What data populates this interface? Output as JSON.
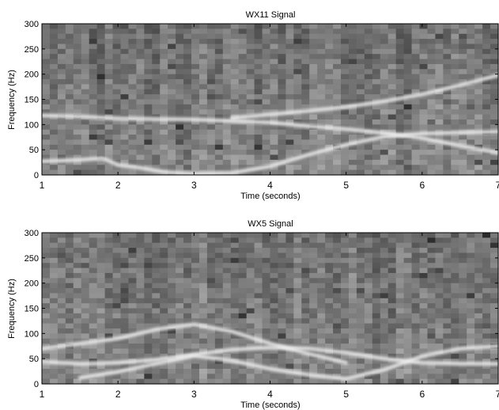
{
  "chart_data": [
    {
      "type": "heatmap",
      "title": "WX11 Signal",
      "xlabel": "Time (seconds)",
      "ylabel": "Frequency (Hz)",
      "xlim": [
        1,
        7
      ],
      "ylim": [
        0,
        300
      ],
      "xticks": [
        1,
        2,
        3,
        4,
        5,
        6,
        7
      ],
      "yticks": [
        0,
        50,
        100,
        150,
        200,
        250,
        300
      ],
      "colormap": "grayscale",
      "grid": false,
      "ridges": [
        {
          "t": [
            1.0,
            1.5,
            2.0,
            2.5,
            3.0,
            3.5,
            4.0,
            4.5,
            5.0,
            5.5,
            6.0,
            6.5,
            7.0
          ],
          "f": [
            118,
            116,
            112,
            111,
            110,
            107,
            104,
            97,
            91,
            83,
            73,
            58,
            44
          ]
        },
        {
          "t": [
            3.5,
            4.0,
            4.5,
            5.0,
            5.5,
            6.0,
            6.5,
            7.0
          ],
          "f": [
            113,
            120,
            127,
            135,
            146,
            160,
            178,
            198
          ]
        },
        {
          "t": [
            1.0,
            1.5,
            1.8,
            2.0,
            2.3,
            2.6,
            3.0,
            3.5,
            4.0,
            4.5,
            5.0,
            5.5,
            6.0,
            6.5,
            7.0
          ],
          "f": [
            27,
            30,
            33,
            20,
            14,
            6,
            2,
            4,
            17,
            40,
            60,
            76,
            82,
            84,
            86
          ]
        }
      ]
    },
    {
      "type": "heatmap",
      "title": "WX5 Signal",
      "xlabel": "Time (seconds)",
      "ylabel": "Frequency (Hz)",
      "xlim": [
        1,
        7
      ],
      "ylim": [
        0,
        300
      ],
      "xticks": [
        1,
        2,
        3,
        4,
        5,
        6,
        7
      ],
      "yticks": [
        0,
        50,
        100,
        150,
        200,
        250,
        300
      ],
      "colormap": "grayscale",
      "grid": false,
      "ridges": [
        {
          "t": [
            1.0,
            1.5,
            2.0,
            2.5,
            3.0,
            3.5,
            4.0,
            4.5,
            5.0,
            5.5,
            6.0,
            6.5,
            7.0
          ],
          "f": [
            44,
            40,
            42,
            48,
            58,
            68,
            72,
            70,
            62,
            50,
            42,
            40,
            40
          ]
        },
        {
          "t": [
            1.0,
            1.5,
            2.0,
            2.5,
            3.0,
            3.5,
            4.0,
            4.5,
            5.0
          ],
          "f": [
            70,
            80,
            90,
            108,
            118,
            104,
            80,
            60,
            42
          ]
        },
        {
          "t": [
            1.5,
            2.0,
            2.5,
            3.0,
            3.5,
            4.0,
            4.5,
            5.0,
            5.5,
            6.0,
            6.5,
            7.0
          ],
          "f": [
            12,
            24,
            40,
            56,
            46,
            30,
            18,
            10,
            28,
            55,
            70,
            75
          ]
        }
      ]
    }
  ]
}
